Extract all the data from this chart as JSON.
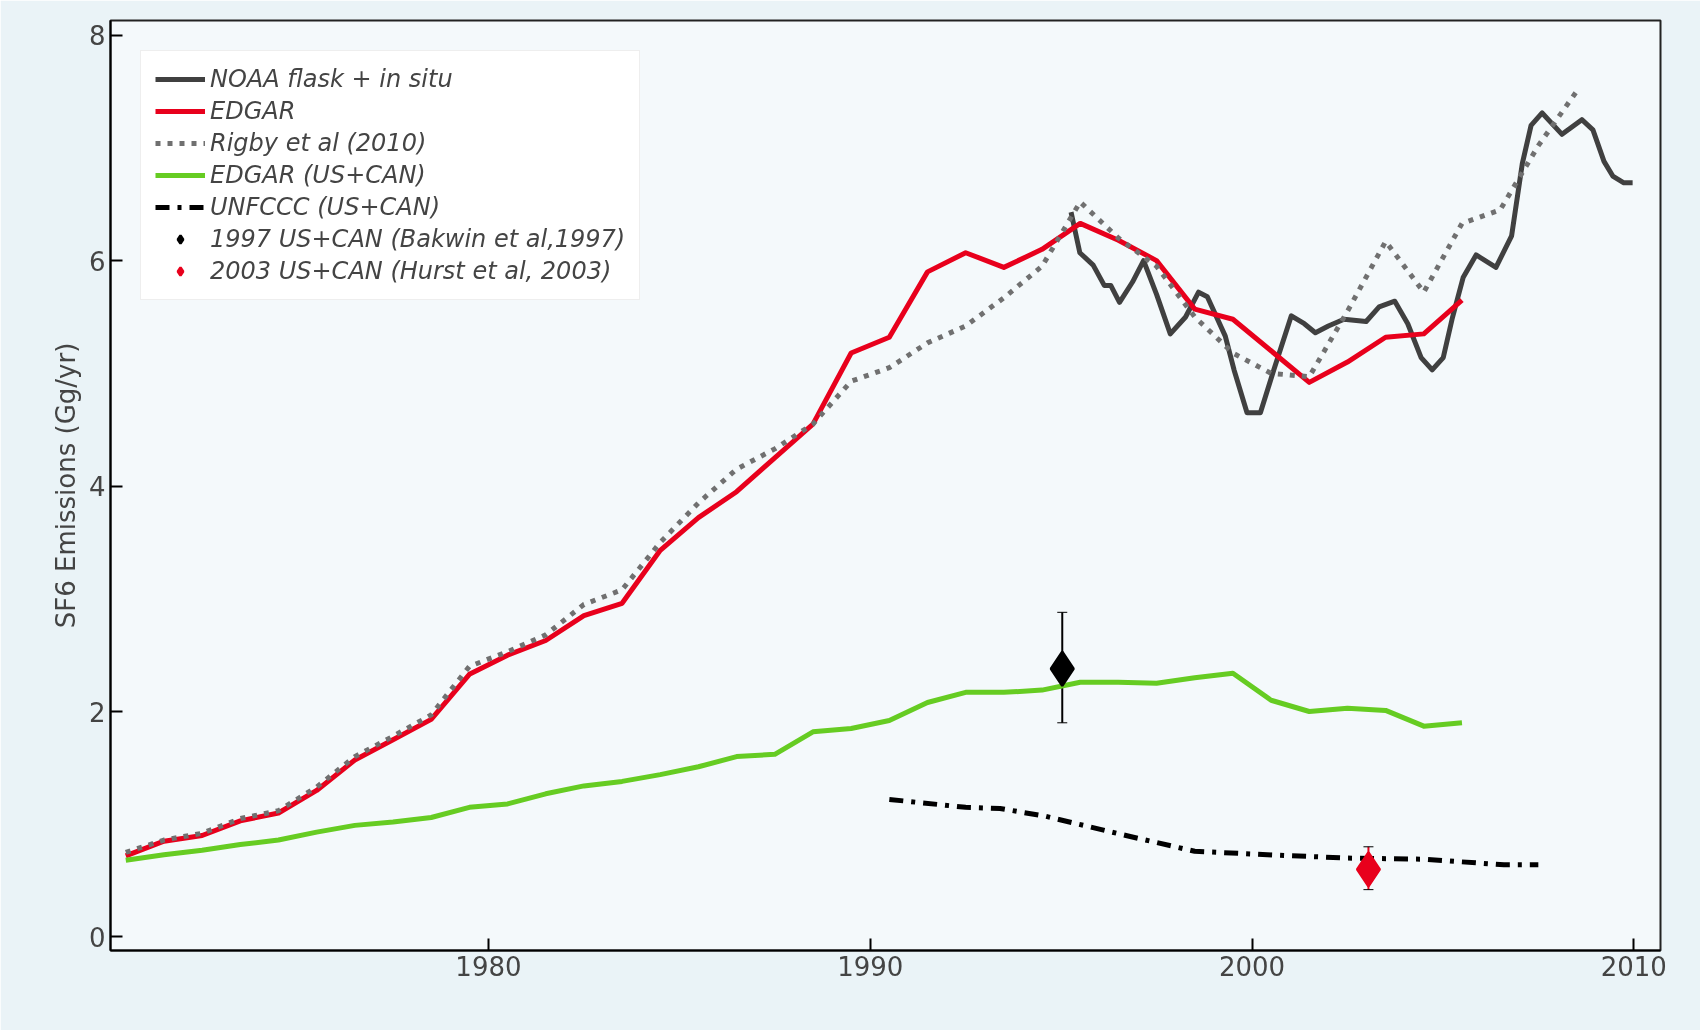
{
  "chart_data": {
    "type": "line",
    "ylabel": "SF6 Emissions (Gg/yr)",
    "xlim": [
      1970.1,
      2010.7
    ],
    "ylim": [
      -0.12,
      8.13
    ],
    "xticks": [
      1980,
      1990,
      2000,
      2010
    ],
    "yticks": [
      0,
      2,
      4,
      6,
      8
    ],
    "grid": false,
    "legend": "top left",
    "series": [
      {
        "name": "NOAA flask + in situ",
        "color": "#404040",
        "line_style": "solid",
        "x": [
          1995.26,
          1995.49,
          1995.84,
          1996.13,
          1996.3,
          1996.53,
          1996.87,
          1997.16,
          1997.5,
          1997.86,
          1998.26,
          1998.6,
          1998.83,
          1999.3,
          1999.53,
          1999.87,
          2000.22,
          2000.57,
          2001.03,
          2001.37,
          2001.66,
          2002.0,
          2002.41,
          2002.99,
          2003.33,
          2003.74,
          2004.08,
          2004.43,
          2004.72,
          2005.01,
          2005.24,
          2005.53,
          2005.87,
          2006.39,
          2006.8,
          2007.08,
          2007.31,
          2007.6,
          2008.12,
          2008.64,
          2008.93,
          2009.22,
          2009.45,
          2009.74,
          2009.97
        ],
        "values": [
          6.43,
          6.07,
          5.96,
          5.78,
          5.78,
          5.63,
          5.81,
          6.0,
          5.7,
          5.35,
          5.5,
          5.72,
          5.68,
          5.33,
          5.03,
          4.65,
          4.65,
          5.03,
          5.51,
          5.44,
          5.36,
          5.42,
          5.48,
          5.46,
          5.59,
          5.64,
          5.44,
          5.14,
          5.03,
          5.14,
          5.48,
          5.85,
          6.05,
          5.94,
          6.22,
          6.86,
          7.2,
          7.31,
          7.12,
          7.25,
          7.16,
          6.88,
          6.75,
          6.69,
          6.69
        ]
      },
      {
        "name": "EDGAR",
        "color": "#e8001c",
        "line_style": "solid",
        "x": [
          1970.5,
          1971.5,
          1972.5,
          1973.5,
          1974.5,
          1975.5,
          1976.5,
          1977.5,
          1978.5,
          1979.5,
          1980.5,
          1981.5,
          1982.5,
          1983.5,
          1984.5,
          1985.5,
          1986.5,
          1987.5,
          1988.5,
          1989.5,
          1990.5,
          1991.5,
          1992.5,
          1993.5,
          1994.5,
          1995.5,
          1996.5,
          1997.5,
          1998.5,
          1999.5,
          2000.5,
          2001.5,
          2002.5,
          2003.5,
          2004.5,
          2005.5
        ],
        "values": [
          0.72,
          0.85,
          0.9,
          1.03,
          1.1,
          1.3,
          1.57,
          1.75,
          1.93,
          2.33,
          2.5,
          2.63,
          2.85,
          2.96,
          3.43,
          3.72,
          3.95,
          4.25,
          4.55,
          5.18,
          5.32,
          5.9,
          6.07,
          5.94,
          6.1,
          6.33,
          6.18,
          6.0,
          5.57,
          5.48,
          5.2,
          4.92,
          5.1,
          5.32,
          5.35,
          5.65
        ]
      },
      {
        "name": "Rigby et al (2010)",
        "color": "#707070",
        "line_style": "dotted",
        "x": [
          1970.5,
          1971.5,
          1972.5,
          1973.5,
          1974.5,
          1975.5,
          1976.5,
          1977.5,
          1978.5,
          1979.5,
          1980.5,
          1981.5,
          1982.5,
          1983.5,
          1984.5,
          1985.5,
          1986.5,
          1987.5,
          1988.5,
          1989.5,
          1990.5,
          1991.5,
          1992.5,
          1993.5,
          1994.5,
          1995.5,
          1996.5,
          1997.5,
          1998.5,
          1999.5,
          2000.5,
          2001.5,
          2002.5,
          2003.5,
          2004.5,
          2005.5,
          2006.5,
          2007.5,
          2008.5
        ],
        "values": [
          0.75,
          0.86,
          0.92,
          1.05,
          1.12,
          1.33,
          1.6,
          1.78,
          1.97,
          2.4,
          2.53,
          2.68,
          2.95,
          3.08,
          3.5,
          3.85,
          4.15,
          4.33,
          4.55,
          4.93,
          5.05,
          5.27,
          5.42,
          5.67,
          5.95,
          6.52,
          6.2,
          5.95,
          5.5,
          5.18,
          5.0,
          4.97,
          5.55,
          6.17,
          5.72,
          6.33,
          6.45,
          7.02,
          7.5
        ]
      },
      {
        "name": "EDGAR (US+CAN)",
        "color": "#66cc22",
        "line_style": "solid",
        "x": [
          1970.5,
          1971.5,
          1972.5,
          1973.5,
          1974.5,
          1975.5,
          1976.5,
          1977.5,
          1978.5,
          1979.5,
          1980.5,
          1981.5,
          1982.5,
          1983.5,
          1984.5,
          1985.5,
          1986.5,
          1987.5,
          1988.5,
          1989.5,
          1990.5,
          1991.5,
          1992.5,
          1993.5,
          1994.5,
          1995.5,
          1996.5,
          1997.5,
          1998.5,
          1999.5,
          2000.5,
          2001.5,
          2002.5,
          2003.5,
          2004.5,
          2005.5
        ],
        "values": [
          0.68,
          0.73,
          0.77,
          0.82,
          0.86,
          0.93,
          0.99,
          1.02,
          1.06,
          1.15,
          1.18,
          1.27,
          1.34,
          1.38,
          1.44,
          1.51,
          1.6,
          1.62,
          1.82,
          1.85,
          1.92,
          2.08,
          2.17,
          2.17,
          2.19,
          2.26,
          2.26,
          2.25,
          2.3,
          2.34,
          2.1,
          2.0,
          2.03,
          2.01,
          1.87,
          1.9
        ]
      },
      {
        "name": "UNFCCC (US+CAN)",
        "color": "#000000",
        "line_style": "dashdot",
        "x": [
          1990.5,
          1992.5,
          1993.4,
          1994.6,
          1996.7,
          1998.5,
          2000.4,
          2002.5,
          2004.5,
          2006.6,
          2007.5
        ],
        "values": [
          1.22,
          1.15,
          1.14,
          1.07,
          0.9,
          0.76,
          0.73,
          0.7,
          0.69,
          0.64,
          0.64
        ]
      },
      {
        "name": "1997 US+CAN (Bakwin et al,1997)",
        "type": "scatter",
        "marker": "diamond",
        "color": "#000000",
        "x": [
          1995.03
        ],
        "values": [
          2.38
        ],
        "errors": [
          [
            1.9,
            2.88
          ]
        ]
      },
      {
        "name": "2003 US+CAN (Hurst et al, 2003)",
        "type": "scatter",
        "marker": "diamond",
        "color": "#e8001c",
        "x": [
          2003.05
        ],
        "values": [
          0.6
        ],
        "errors": [
          [
            0.42,
            0.8
          ]
        ]
      }
    ]
  }
}
